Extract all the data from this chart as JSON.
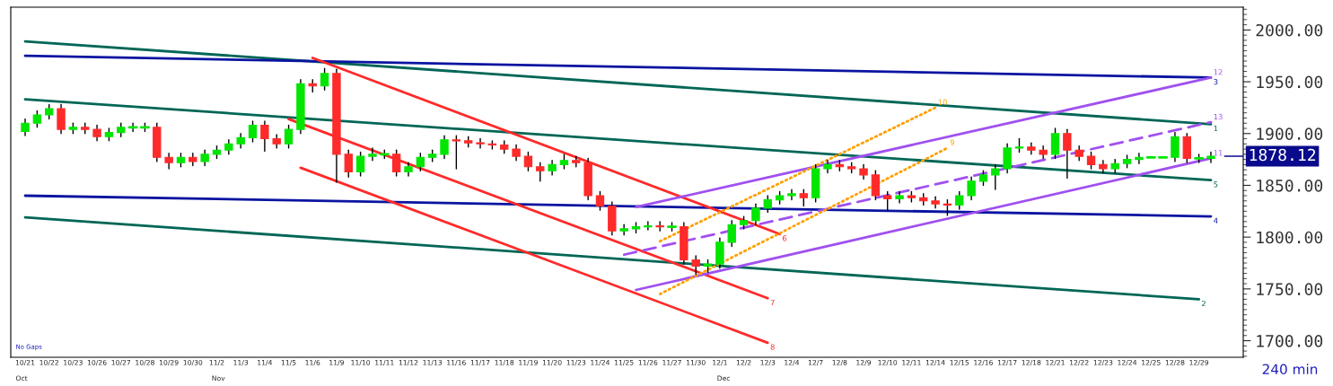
{
  "chart_data": {
    "type": "candlestick",
    "categories": [
      "10/21",
      null,
      "10/22",
      null,
      "10/23",
      null,
      "10/26",
      null,
      "10/27",
      null,
      "10/28",
      null,
      "10/29",
      null,
      "10/30",
      null,
      "11/2",
      null,
      "11/3",
      null,
      "11/4",
      null,
      "11/5",
      null,
      "11/6",
      null,
      "11/9",
      null,
      "11/10",
      null,
      "11/11",
      null,
      "11/12",
      null,
      "11/13",
      null,
      "11/16",
      null,
      "11/17",
      null,
      "11/18",
      null,
      "11/19",
      null,
      "11/20",
      null,
      "11/23",
      null,
      "11/24",
      null,
      "11/25",
      null,
      "11/26",
      null,
      "11/27",
      null,
      "11/30",
      null,
      "12/1",
      null,
      "12/2",
      null,
      "12/3",
      null,
      "12/4",
      null,
      "12/7",
      null,
      "12/8",
      null,
      "12/9",
      null,
      "12/10",
      null,
      "12/11",
      null,
      "12/14",
      null,
      "12/15",
      null,
      "12/16",
      null,
      "12/17",
      null,
      "12/18",
      null,
      "12/21",
      null,
      "12/22",
      null,
      "12/23",
      null,
      "12/24",
      null,
      "12/25",
      null,
      "12/28",
      null,
      "12/29",
      null
    ],
    "ohlc": [
      [
        1902,
        1914,
        1898,
        1910
      ],
      [
        1910,
        1922,
        1906,
        1918
      ],
      [
        1918,
        1928,
        1914,
        1924
      ],
      [
        1924,
        1928,
        1900,
        1904
      ],
      [
        1904,
        1910,
        1900,
        1906
      ],
      [
        1906,
        1910,
        1900,
        1904
      ],
      [
        1904,
        1908,
        1893,
        1897
      ],
      [
        1897,
        1905,
        1893,
        1901
      ],
      [
        1901,
        1910,
        1897,
        1906
      ],
      [
        1906,
        1910,
        1902,
        1906
      ],
      [
        1906,
        1910,
        1902,
        1906
      ],
      [
        1906,
        1910,
        1873,
        1877
      ],
      [
        1877,
        1881,
        1866,
        1872
      ],
      [
        1872,
        1881,
        1868,
        1877
      ],
      [
        1877,
        1881,
        1869,
        1873
      ],
      [
        1873,
        1884,
        1869,
        1880
      ],
      [
        1880,
        1888,
        1876,
        1884
      ],
      [
        1884,
        1894,
        1880,
        1890
      ],
      [
        1890,
        1900,
        1886,
        1896
      ],
      [
        1896,
        1912,
        1892,
        1908
      ],
      [
        1908,
        1912,
        1883,
        1895
      ],
      [
        1895,
        1899,
        1886,
        1890
      ],
      [
        1890,
        1908,
        1886,
        1904
      ],
      [
        1904,
        1952,
        1900,
        1948
      ],
      [
        1948,
        1952,
        1940,
        1946
      ],
      [
        1946,
        1963,
        1942,
        1958
      ],
      [
        1958,
        1962,
        1853,
        1880
      ],
      [
        1880,
        1884,
        1858,
        1863
      ],
      [
        1863,
        1882,
        1859,
        1878
      ],
      [
        1878,
        1886,
        1874,
        1880
      ],
      [
        1880,
        1884,
        1876,
        1880
      ],
      [
        1880,
        1884,
        1859,
        1863
      ],
      [
        1863,
        1872,
        1859,
        1868
      ],
      [
        1868,
        1881,
        1864,
        1877
      ],
      [
        1877,
        1884,
        1873,
        1880
      ],
      [
        1880,
        1898,
        1876,
        1894
      ],
      [
        1894,
        1898,
        1866,
        1893
      ],
      [
        1893,
        1897,
        1887,
        1891
      ],
      [
        1891,
        1895,
        1886,
        1890
      ],
      [
        1890,
        1893,
        1885,
        1889
      ],
      [
        1889,
        1893,
        1881,
        1885
      ],
      [
        1885,
        1889,
        1874,
        1878
      ],
      [
        1878,
        1882,
        1864,
        1868
      ],
      [
        1868,
        1872,
        1854,
        1864
      ],
      [
        1864,
        1874,
        1860,
        1870
      ],
      [
        1870,
        1880,
        1866,
        1874
      ],
      [
        1874,
        1878,
        1868,
        1872
      ],
      [
        1872,
        1876,
        1836,
        1840
      ],
      [
        1840,
        1844,
        1826,
        1830
      ],
      [
        1830,
        1834,
        1802,
        1806
      ],
      [
        1806,
        1812,
        1802,
        1808
      ],
      [
        1808,
        1814,
        1804,
        1810
      ],
      [
        1810,
        1815,
        1807,
        1811
      ],
      [
        1811,
        1815,
        1806,
        1810
      ],
      [
        1810,
        1814,
        1806,
        1810
      ],
      [
        1810,
        1814,
        1774,
        1778
      ],
      [
        1778,
        1782,
        1764,
        1772
      ],
      [
        1772,
        1778,
        1766,
        1774
      ],
      [
        1774,
        1799,
        1770,
        1795
      ],
      [
        1795,
        1816,
        1791,
        1812
      ],
      [
        1812,
        1820,
        1808,
        1816
      ],
      [
        1816,
        1832,
        1812,
        1828
      ],
      [
        1828,
        1840,
        1824,
        1836
      ],
      [
        1836,
        1844,
        1832,
        1840
      ],
      [
        1840,
        1846,
        1836,
        1842
      ],
      [
        1842,
        1846,
        1830,
        1838
      ],
      [
        1838,
        1870,
        1834,
        1866
      ],
      [
        1866,
        1874,
        1862,
        1870
      ],
      [
        1870,
        1874,
        1864,
        1868
      ],
      [
        1868,
        1872,
        1862,
        1866
      ],
      [
        1866,
        1870,
        1856,
        1860
      ],
      [
        1860,
        1864,
        1836,
        1840
      ],
      [
        1840,
        1844,
        1826,
        1837
      ],
      [
        1837,
        1844,
        1833,
        1840
      ],
      [
        1840,
        1844,
        1834,
        1838
      ],
      [
        1838,
        1842,
        1831,
        1835
      ],
      [
        1835,
        1839,
        1828,
        1832
      ],
      [
        1832,
        1836,
        1821,
        1831
      ],
      [
        1831,
        1844,
        1827,
        1840
      ],
      [
        1840,
        1858,
        1836,
        1854
      ],
      [
        1854,
        1864,
        1850,
        1860
      ],
      [
        1860,
        1870,
        1846,
        1866
      ],
      [
        1866,
        1890,
        1862,
        1886
      ],
      [
        1886,
        1895,
        1882,
        1887
      ],
      [
        1887,
        1891,
        1880,
        1884
      ],
      [
        1884,
        1888,
        1876,
        1880
      ],
      [
        1880,
        1905,
        1876,
        1900
      ],
      [
        1900,
        1904,
        1857,
        1884
      ],
      [
        1884,
        1888,
        1874,
        1878
      ],
      [
        1878,
        1882,
        1866,
        1870
      ],
      [
        1870,
        1874,
        1862,
        1866
      ],
      [
        1866,
        1875,
        1862,
        1871
      ],
      [
        1871,
        1879,
        1867,
        1875
      ],
      [
        1875,
        1881,
        1871,
        1877
      ],
      [
        1877,
        1877,
        1877,
        1877
      ],
      [
        1877,
        1877,
        1877,
        1877
      ],
      [
        1877,
        1901,
        1873,
        1897
      ],
      [
        1897,
        1900,
        1872,
        1876
      ],
      [
        1876,
        1880,
        1872,
        1876
      ],
      [
        1876,
        1882,
        1872,
        1878.12
      ]
    ],
    "colors": [
      "#00e600",
      "#00e600",
      "#00e600",
      "#ff2a2a",
      "#00e600",
      "#ff2a2a",
      "#ff2a2a",
      "#00e600",
      "#00e600",
      "#00e600",
      "#00e600",
      "#ff2a2a",
      "#ff2a2a",
      "#00e600",
      "#ff2a2a",
      "#00e600",
      "#00e600",
      "#00e600",
      "#00e600",
      "#00e600",
      "#ff2a2a",
      "#ff2a2a",
      "#00e600",
      "#00e600",
      "#ff2a2a",
      "#00e600",
      "#ff2a2a",
      "#ff2a2a",
      "#00e600",
      "#00e600",
      "#00e600",
      "#ff2a2a",
      "#00e600",
      "#00e600",
      "#00e600",
      "#00e600",
      "#ff2a2a",
      "#ff2a2a",
      "#ff2a2a",
      "#ff2a2a",
      "#ff2a2a",
      "#ff2a2a",
      "#ff2a2a",
      "#ff2a2a",
      "#00e600",
      "#00e600",
      "#ff2a2a",
      "#ff2a2a",
      "#ff2a2a",
      "#ff2a2a",
      "#00e600",
      "#00e600",
      "#00e600",
      "#ff2a2a",
      "#00e600",
      "#ff2a2a",
      "#ff2a2a",
      "#00e600",
      "#00e600",
      "#00e600",
      "#00e600",
      "#00e600",
      "#00e600",
      "#00e600",
      "#00e600",
      "#ff2a2a",
      "#00e600",
      "#00e600",
      "#ff2a2a",
      "#ff2a2a",
      "#ff2a2a",
      "#ff2a2a",
      "#ff2a2a",
      "#00e600",
      "#ff2a2a",
      "#ff2a2a",
      "#ff2a2a",
      "#ff2a2a",
      "#00e600",
      "#00e600",
      "#00e600",
      "#00e600",
      "#00e600",
      "#00e600",
      "#ff2a2a",
      "#ff2a2a",
      "#00e600",
      "#ff2a2a",
      "#ff2a2a",
      "#ff2a2a",
      "#ff2a2a",
      "#00e600",
      "#00e600",
      "#00e600",
      "#00e600",
      "#00e600",
      "#00e600",
      "#ff2a2a",
      "#00e600",
      "#00e600"
    ],
    "series": [
      {
        "type": "line",
        "name": "1",
        "color": "#006656",
        "line_style": "solid",
        "values": [
          1989,
          null,
          null,
          null,
          null,
          null,
          null,
          null,
          null,
          null,
          null,
          null,
          null,
          null,
          null,
          null,
          null,
          null,
          null,
          null,
          null,
          null,
          null,
          null,
          null,
          null,
          null,
          null,
          null,
          null,
          null,
          null,
          null,
          null,
          null,
          null,
          null,
          null,
          null,
          null,
          null,
          null,
          null,
          null,
          null,
          null,
          null,
          null,
          null,
          null,
          null,
          null,
          null,
          null,
          null,
          null,
          null,
          null,
          null,
          null,
          null,
          null,
          null,
          null,
          null,
          null,
          null,
          null,
          null,
          null,
          null,
          null,
          null,
          null,
          null,
          null,
          null,
          null,
          null,
          null,
          null,
          null,
          null,
          null,
          null,
          null,
          null,
          null,
          null,
          null,
          null,
          null,
          null,
          null,
          null,
          null,
          null,
          null,
          null,
          1909
        ]
      },
      {
        "type": "line",
        "name": "5",
        "color": "#006656",
        "line_style": "solid",
        "values": [
          1933,
          null,
          null,
          null,
          null,
          null,
          null,
          null,
          null,
          null,
          null,
          null,
          null,
          null,
          null,
          null,
          null,
          null,
          null,
          null,
          null,
          null,
          null,
          null,
          null,
          null,
          null,
          null,
          null,
          null,
          null,
          null,
          null,
          null,
          null,
          null,
          null,
          null,
          null,
          null,
          null,
          null,
          null,
          null,
          null,
          null,
          null,
          null,
          null,
          null,
          null,
          null,
          null,
          null,
          null,
          null,
          null,
          null,
          null,
          null,
          null,
          null,
          null,
          null,
          null,
          null,
          null,
          null,
          null,
          null,
          null,
          null,
          null,
          null,
          null,
          null,
          null,
          null,
          null,
          null,
          null,
          null,
          null,
          null,
          null,
          null,
          null,
          null,
          null,
          null,
          null,
          null,
          null,
          null,
          null,
          null,
          null,
          null,
          null,
          1855
        ]
      },
      {
        "type": "line",
        "name": "2",
        "color": "#006656",
        "line_style": "solid",
        "values": [
          1819,
          null,
          null,
          null,
          null,
          null,
          null,
          null,
          null,
          null,
          null,
          null,
          null,
          null,
          null,
          null,
          null,
          null,
          null,
          null,
          null,
          null,
          null,
          null,
          null,
          null,
          null,
          null,
          null,
          null,
          null,
          null,
          null,
          null,
          null,
          null,
          null,
          null,
          null,
          null,
          null,
          null,
          null,
          null,
          null,
          null,
          null,
          null,
          null,
          null,
          null,
          null,
          null,
          null,
          null,
          null,
          null,
          null,
          null,
          null,
          null,
          null,
          null,
          null,
          null,
          null,
          null,
          null,
          null,
          null,
          null,
          null,
          null,
          null,
          null,
          null,
          null,
          null,
          null,
          null,
          null,
          null,
          null,
          null,
          null,
          null,
          null,
          null,
          null,
          null,
          null,
          null,
          null,
          null,
          null,
          null,
          null,
          null,
          1740,
          null
        ]
      },
      {
        "type": "line",
        "name": "3",
        "color": "#0a14a0",
        "line_style": "solid",
        "values": [
          1975,
          null,
          null,
          null,
          null,
          null,
          null,
          null,
          null,
          null,
          null,
          null,
          null,
          null,
          null,
          null,
          null,
          null,
          null,
          null,
          null,
          null,
          null,
          null,
          null,
          null,
          null,
          null,
          null,
          null,
          null,
          null,
          null,
          null,
          null,
          null,
          null,
          null,
          null,
          null,
          null,
          null,
          null,
          null,
          null,
          null,
          null,
          null,
          null,
          null,
          null,
          null,
          null,
          null,
          null,
          null,
          null,
          null,
          null,
          null,
          null,
          null,
          null,
          null,
          null,
          null,
          null,
          null,
          null,
          null,
          null,
          null,
          null,
          null,
          null,
          null,
          null,
          null,
          null,
          null,
          null,
          null,
          null,
          null,
          null,
          null,
          null,
          null,
          null,
          null,
          null,
          null,
          null,
          null,
          null,
          null,
          null,
          null,
          null,
          1954
        ]
      },
      {
        "type": "line",
        "name": "4",
        "color": "#0a14a0",
        "line_style": "solid",
        "values": [
          1840,
          null,
          null,
          null,
          null,
          null,
          null,
          null,
          null,
          null,
          null,
          null,
          null,
          null,
          null,
          null,
          null,
          null,
          null,
          null,
          null,
          null,
          null,
          null,
          null,
          null,
          null,
          null,
          null,
          null,
          null,
          null,
          null,
          null,
          null,
          null,
          null,
          null,
          null,
          null,
          null,
          null,
          null,
          null,
          null,
          null,
          null,
          null,
          null,
          null,
          null,
          null,
          null,
          null,
          null,
          null,
          null,
          null,
          null,
          null,
          null,
          null,
          null,
          null,
          null,
          null,
          null,
          null,
          null,
          null,
          null,
          null,
          null,
          null,
          null,
          null,
          null,
          null,
          null,
          null,
          null,
          null,
          null,
          null,
          null,
          null,
          null,
          null,
          null,
          null,
          null,
          null,
          null,
          null,
          null,
          null,
          null,
          null,
          null,
          1820
        ]
      },
      {
        "type": "line",
        "name": "6",
        "color": "#ff2a2a",
        "line_style": "solid",
        "values": [
          null,
          null,
          null,
          null,
          null,
          null,
          null,
          null,
          null,
          null,
          null,
          null,
          null,
          null,
          null,
          null,
          null,
          null,
          null,
          null,
          null,
          null,
          null,
          null,
          1973,
          null,
          null,
          null,
          null,
          null,
          null,
          null,
          null,
          null,
          null,
          null,
          null,
          null,
          null,
          null,
          null,
          null,
          null,
          null,
          null,
          null,
          null,
          null,
          null,
          null,
          null,
          null,
          null,
          null,
          null,
          null,
          null,
          null,
          null,
          null,
          null,
          null,
          null,
          1803,
          null,
          null,
          null,
          null,
          null,
          null,
          null,
          null,
          null,
          null,
          null,
          null,
          null,
          null,
          null,
          null,
          null,
          null,
          null,
          null,
          null,
          null,
          null,
          null,
          null,
          null,
          null,
          null,
          null,
          null,
          null,
          null,
          null,
          null,
          null,
          null
        ]
      },
      {
        "type": "line",
        "name": "7",
        "color": "#ff2a2a",
        "line_style": "solid",
        "values": [
          null,
          null,
          null,
          null,
          null,
          null,
          null,
          null,
          null,
          null,
          null,
          null,
          null,
          null,
          null,
          null,
          null,
          null,
          null,
          null,
          null,
          null,
          1914,
          null,
          null,
          null,
          null,
          null,
          null,
          null,
          null,
          null,
          null,
          null,
          null,
          null,
          null,
          null,
          null,
          null,
          null,
          null,
          null,
          null,
          null,
          null,
          null,
          null,
          null,
          null,
          null,
          null,
          null,
          null,
          null,
          null,
          null,
          null,
          null,
          null,
          null,
          null,
          1741,
          null,
          null,
          null,
          null,
          null,
          null,
          null,
          null,
          null,
          null,
          null,
          null,
          null,
          null,
          null,
          null,
          null,
          null,
          null,
          null,
          null,
          null,
          null,
          null,
          null,
          null,
          null,
          null,
          null,
          null,
          null,
          null,
          null,
          null,
          null,
          null,
          null
        ]
      },
      {
        "type": "line",
        "name": "8",
        "color": "#ff2a2a",
        "line_style": "solid",
        "values": [
          null,
          null,
          null,
          null,
          null,
          null,
          null,
          null,
          null,
          null,
          null,
          null,
          null,
          null,
          null,
          null,
          null,
          null,
          null,
          null,
          null,
          null,
          null,
          1867,
          null,
          null,
          null,
          null,
          null,
          null,
          null,
          null,
          null,
          null,
          null,
          null,
          null,
          null,
          null,
          null,
          null,
          null,
          null,
          null,
          null,
          null,
          null,
          null,
          null,
          null,
          null,
          null,
          null,
          null,
          null,
          null,
          null,
          null,
          null,
          null,
          null,
          null,
          1698,
          null,
          null,
          null,
          null,
          null,
          null,
          null,
          null,
          null,
          null,
          null,
          null,
          null,
          null,
          null,
          null,
          null,
          null,
          null,
          null,
          null,
          null,
          null,
          null,
          null,
          null,
          null,
          null,
          null,
          null,
          null,
          null,
          null,
          null,
          null,
          null,
          null
        ]
      },
      {
        "type": "line",
        "name": "12",
        "color": "#a050f0",
        "line_style": "solid",
        "values": [
          null,
          null,
          null,
          null,
          null,
          null,
          null,
          null,
          null,
          null,
          null,
          null,
          null,
          null,
          null,
          null,
          null,
          null,
          null,
          null,
          null,
          null,
          null,
          null,
          null,
          null,
          null,
          null,
          null,
          null,
          null,
          null,
          null,
          null,
          null,
          null,
          null,
          null,
          null,
          null,
          null,
          null,
          null,
          null,
          null,
          null,
          null,
          null,
          null,
          null,
          null,
          1829,
          null,
          null,
          null,
          null,
          null,
          null,
          null,
          null,
          null,
          null,
          null,
          null,
          null,
          null,
          null,
          null,
          null,
          null,
          null,
          null,
          null,
          null,
          null,
          null,
          null,
          null,
          null,
          null,
          null,
          null,
          null,
          null,
          null,
          null,
          null,
          null,
          null,
          null,
          null,
          null,
          null,
          null,
          null,
          null,
          null,
          null,
          null,
          1954
        ]
      },
      {
        "type": "line",
        "name": "11",
        "color": "#a050f0",
        "line_style": "solid",
        "values": [
          null,
          null,
          null,
          null,
          null,
          null,
          null,
          null,
          null,
          null,
          null,
          null,
          null,
          null,
          null,
          null,
          null,
          null,
          null,
          null,
          null,
          null,
          null,
          null,
          null,
          null,
          null,
          null,
          null,
          null,
          null,
          null,
          null,
          null,
          null,
          null,
          null,
          null,
          null,
          null,
          null,
          null,
          null,
          null,
          null,
          null,
          null,
          null,
          null,
          null,
          null,
          1749,
          null,
          null,
          null,
          null,
          null,
          null,
          null,
          null,
          null,
          null,
          null,
          null,
          null,
          null,
          null,
          null,
          null,
          null,
          null,
          null,
          null,
          null,
          null,
          null,
          null,
          null,
          null,
          null,
          null,
          null,
          null,
          null,
          null,
          null,
          null,
          null,
          null,
          null,
          null,
          null,
          null,
          null,
          null,
          null,
          null,
          null,
          null,
          1876
        ]
      },
      {
        "type": "line",
        "name": "13",
        "color": "#a050f0",
        "line_style": "dashed",
        "values": [
          null,
          null,
          null,
          null,
          null,
          null,
          null,
          null,
          null,
          null,
          null,
          null,
          null,
          null,
          null,
          null,
          null,
          null,
          null,
          null,
          null,
          null,
          null,
          null,
          null,
          null,
          null,
          null,
          null,
          null,
          null,
          null,
          null,
          null,
          null,
          null,
          null,
          null,
          null,
          null,
          null,
          null,
          null,
          null,
          null,
          null,
          null,
          null,
          null,
          null,
          1783,
          null,
          null,
          null,
          null,
          null,
          null,
          null,
          null,
          null,
          null,
          null,
          null,
          null,
          null,
          null,
          null,
          null,
          null,
          null,
          null,
          null,
          null,
          null,
          null,
          null,
          null,
          null,
          null,
          null,
          null,
          null,
          null,
          null,
          null,
          null,
          null,
          null,
          null,
          null,
          null,
          null,
          null,
          null,
          null,
          null,
          null,
          null,
          null,
          1911
        ]
      },
      {
        "type": "line",
        "name": "10",
        "color": "#ffa000",
        "line_style": "dotted",
        "values": [
          null,
          null,
          null,
          null,
          null,
          null,
          null,
          null,
          null,
          null,
          null,
          null,
          null,
          null,
          null,
          null,
          null,
          null,
          null,
          null,
          null,
          null,
          null,
          null,
          null,
          null,
          null,
          null,
          null,
          null,
          null,
          null,
          null,
          null,
          null,
          null,
          null,
          null,
          null,
          null,
          null,
          null,
          null,
          null,
          null,
          null,
          null,
          null,
          null,
          null,
          null,
          null,
          null,
          1796,
          null,
          null,
          null,
          null,
          null,
          null,
          null,
          null,
          null,
          null,
          null,
          null,
          null,
          null,
          null,
          null,
          null,
          null,
          null,
          null,
          null,
          null,
          1925,
          null,
          null,
          null,
          null,
          null,
          null,
          null,
          null,
          null,
          null,
          null,
          null,
          null,
          null,
          null,
          null,
          null,
          null,
          null,
          null,
          null,
          null,
          null
        ]
      },
      {
        "type": "line",
        "name": "9",
        "color": "#ffa000",
        "line_style": "dotted",
        "values": [
          null,
          null,
          null,
          null,
          null,
          null,
          null,
          null,
          null,
          null,
          null,
          null,
          null,
          null,
          null,
          null,
          null,
          null,
          null,
          null,
          null,
          null,
          null,
          null,
          null,
          null,
          null,
          null,
          null,
          null,
          null,
          null,
          null,
          null,
          null,
          null,
          null,
          null,
          null,
          null,
          null,
          null,
          null,
          null,
          null,
          null,
          null,
          null,
          null,
          null,
          null,
          null,
          null,
          1745,
          null,
          null,
          null,
          null,
          null,
          null,
          null,
          null,
          null,
          null,
          null,
          null,
          null,
          null,
          null,
          null,
          null,
          null,
          null,
          null,
          null,
          null,
          null,
          1886,
          null,
          null,
          null,
          null,
          null,
          null,
          null,
          null,
          null,
          null,
          null,
          null,
          null,
          null,
          null,
          null,
          null,
          null,
          null,
          null,
          null,
          null
        ]
      }
    ],
    "ylim": [
      1684,
      2022
    ],
    "yticks": [
      {
        "value": 1700,
        "label": "1700.00"
      },
      {
        "value": 1750,
        "label": "1750.00"
      },
      {
        "value": 1800,
        "label": "1800.00"
      },
      {
        "value": 1850,
        "label": "1850.00"
      },
      {
        "value": 1900,
        "label": "1900.00"
      },
      {
        "value": 1950,
        "label": "1950.00"
      },
      {
        "value": 2000,
        "label": "2000.00"
      }
    ],
    "ref_lines": [
      {
        "axis": "y",
        "value": 1878.12,
        "label": "1878.12",
        "color": "#0a0a8c"
      }
    ],
    "annotations": [
      "No Gaps",
      "240 min",
      "Oct",
      "Nov",
      "Dec"
    ]
  }
}
